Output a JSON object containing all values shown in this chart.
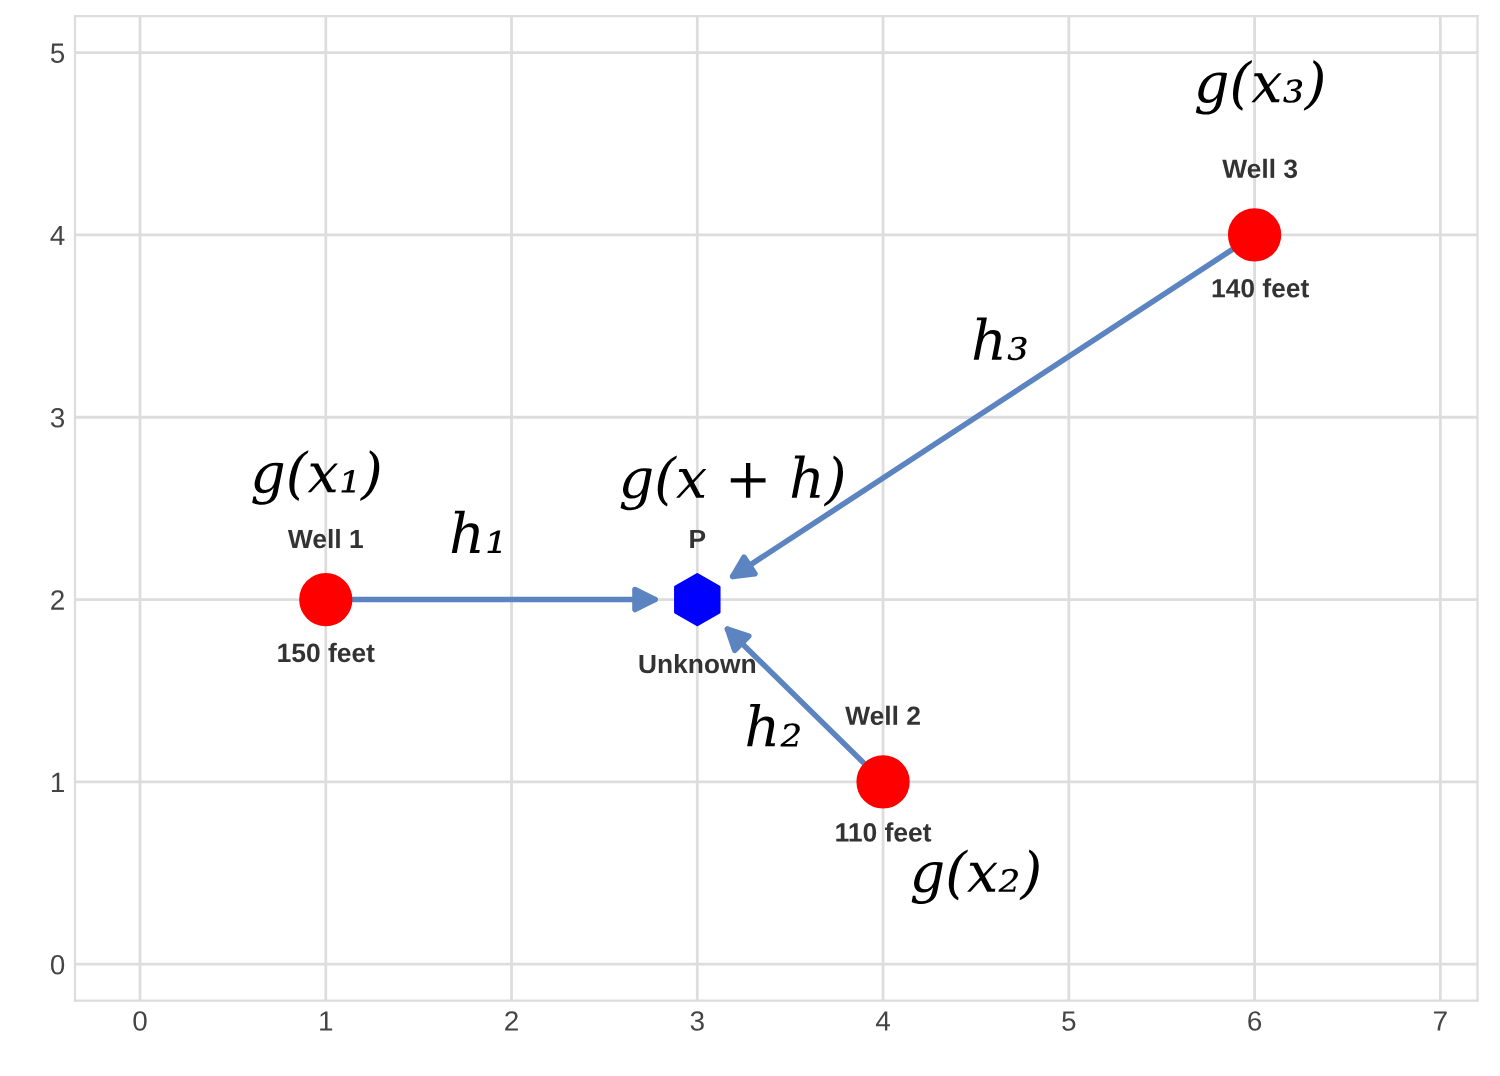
{
  "chart_data": {
    "type": "scatter",
    "series": [
      {
        "color": "#ff0000",
        "marker": "circle",
        "x": [
          1,
          4,
          6
        ],
        "values": [
          2,
          1,
          4
        ]
      },
      {
        "color": "#0000ff",
        "x": [
          3
        ],
        "values": [
          2
        ]
      }
    ],
    "xlim": [
      -0.35,
      7.2
    ],
    "ylim": [
      -0.2,
      5.2
    ],
    "xticks": [
      0,
      1,
      2,
      3,
      4,
      5,
      6,
      7
    ],
    "yticks": [
      0,
      1,
      2,
      3,
      4,
      5
    ],
    "grid": true,
    "annotations": [
      "g(x₁)",
      "h₁",
      "g(x + h)",
      "h₂",
      "g(x₂)",
      "g(x₃)",
      "h₃",
      {
        "text": "Well 1",
        "x": 1,
        "y": 2
      },
      {
        "text": "150 feet",
        "x": 1,
        "y": 2
      },
      {
        "text": "P",
        "x": 3,
        "y": 2
      },
      {
        "text": "Unknown",
        "x": 3,
        "y": 2
      },
      {
        "text": "Well 2",
        "x": 4,
        "y": 1
      },
      {
        "text": "110 feet",
        "x": 4,
        "y": 1
      },
      {
        "text": "Well 3",
        "x": 6,
        "y": 4
      },
      {
        "text": "140 feet",
        "x": 6,
        "y": 4
      }
    ]
  }
}
